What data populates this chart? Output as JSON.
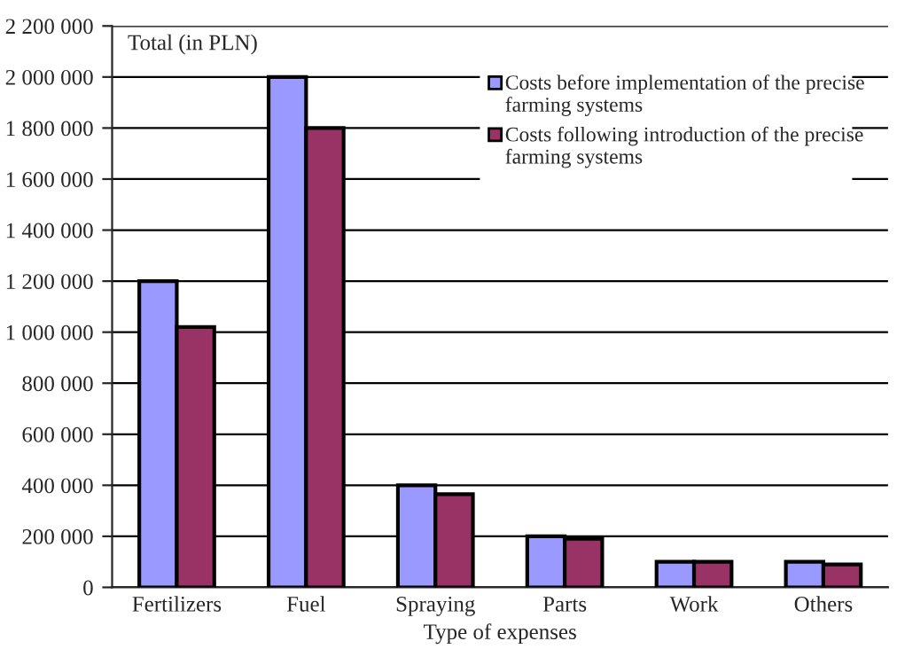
{
  "chart_data": {
    "type": "bar",
    "xlabel": "Type of expenses",
    "ylabel": "Total (in PLN)",
    "categories": [
      "Fertilizers",
      "Fuel",
      "Spraying",
      "Parts",
      "Work",
      "Others"
    ],
    "series": [
      {
        "name": "Costs before implementation of the precise farming systems",
        "color": "#9999ff",
        "values": [
          1200000,
          2000000,
          400000,
          200000,
          100000,
          100000
        ]
      },
      {
        "name": "Costs following introduction of the precise farming systems",
        "color": "#993366",
        "values": [
          1020000,
          1800000,
          365000,
          190000,
          100000,
          90000
        ]
      }
    ],
    "ylim": [
      0,
      2200000
    ],
    "yticks": [
      {
        "value": 0,
        "label": "0"
      },
      {
        "value": 200000,
        "label": "200 000"
      },
      {
        "value": 400000,
        "label": "400 000"
      },
      {
        "value": 600000,
        "label": "600 000"
      },
      {
        "value": 800000,
        "label": "800 000"
      },
      {
        "value": 1000000,
        "label": "1 000 000"
      },
      {
        "value": 1200000,
        "label": "1 200 000"
      },
      {
        "value": 1400000,
        "label": "1 400 000"
      },
      {
        "value": 1600000,
        "label": "1 600 000"
      },
      {
        "value": 1800000,
        "label": "1 800 000"
      },
      {
        "value": 2000000,
        "label": "2 000 000"
      },
      {
        "value": 2200000,
        "label": "2 200 000"
      }
    ],
    "grid": "y",
    "legend": "top right"
  }
}
